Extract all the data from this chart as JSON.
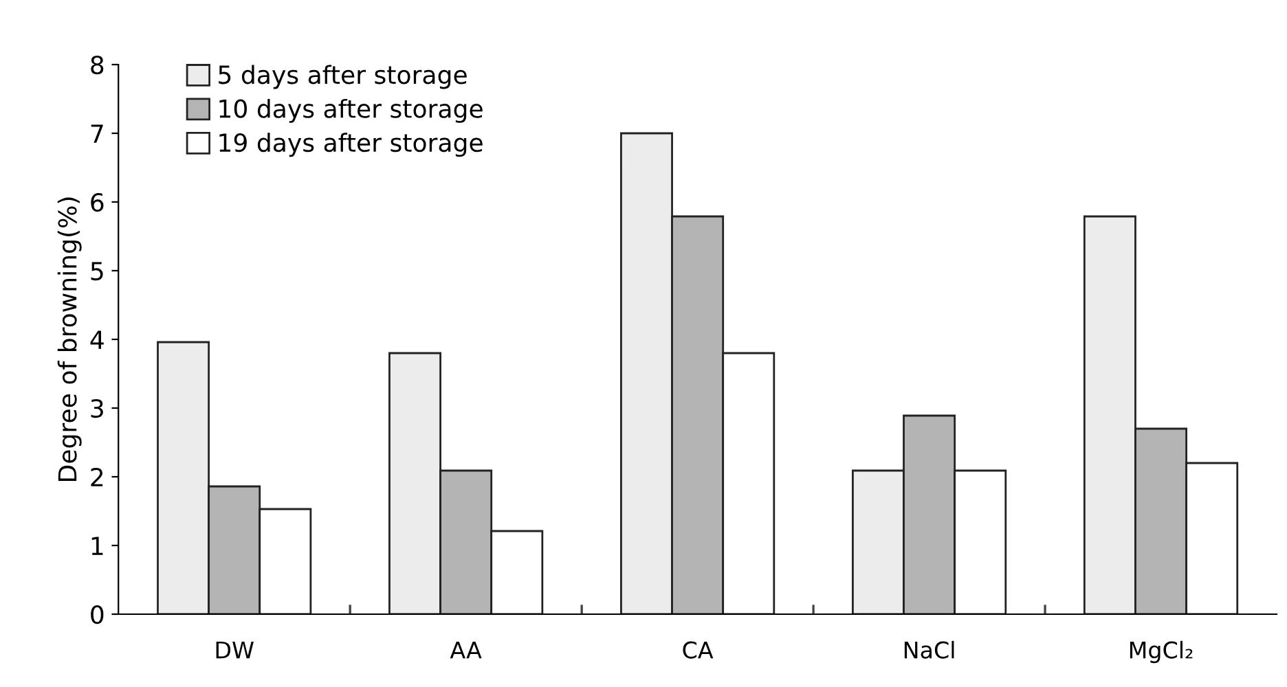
{
  "chart_data": {
    "type": "bar",
    "ylabel": "Degree of browning(%)",
    "categories": [
      "DW",
      "AA",
      "CA",
      "NaCl",
      "MgCl₂"
    ],
    "series": [
      {
        "name": "5 days after storage",
        "color": "#ececec",
        "values": [
          3.96,
          3.8,
          7.0,
          2.09,
          5.79
        ]
      },
      {
        "name": "10 days after storage",
        "color": "#b4b4b4",
        "values": [
          1.86,
          2.09,
          5.79,
          2.89,
          2.7
        ]
      },
      {
        "name": "19 days after storage",
        "color": "#ffffff",
        "values": [
          1.53,
          1.21,
          3.8,
          2.09,
          2.2
        ]
      }
    ],
    "ylim": [
      0,
      8
    ],
    "yticks": [
      0,
      1,
      2,
      3,
      4,
      5,
      6,
      7,
      8
    ],
    "grid": false,
    "legend": "top left"
  }
}
